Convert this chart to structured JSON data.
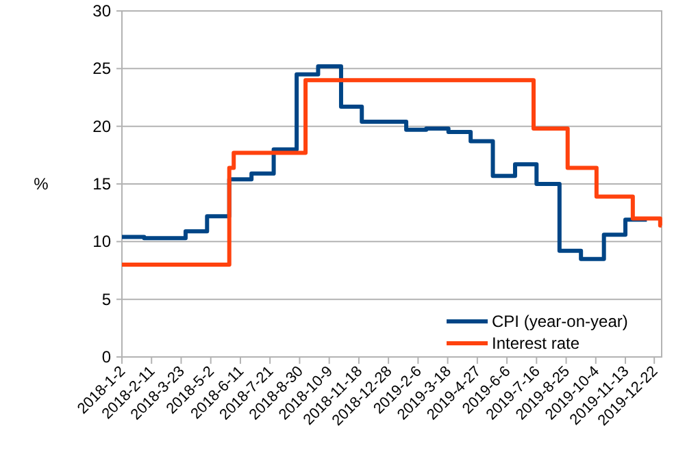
{
  "chart_data": {
    "type": "step",
    "ylabel": "%",
    "xlim": [
      "2018-01-02",
      "2020-01-01"
    ],
    "ylim": [
      0,
      30
    ],
    "yticks": [
      0,
      5,
      10,
      15,
      20,
      25,
      30
    ],
    "xticks": [
      {
        "value": "2018-01-02",
        "label": "2018-1-2"
      },
      {
        "value": "2018-02-11",
        "label": "2018-2-11"
      },
      {
        "value": "2018-03-23",
        "label": "2018-3-23"
      },
      {
        "value": "2018-05-02",
        "label": "2018-5-2"
      },
      {
        "value": "2018-06-11",
        "label": "2018-6-11"
      },
      {
        "value": "2018-07-21",
        "label": "2018-7-21"
      },
      {
        "value": "2018-08-30",
        "label": "2018-8-30"
      },
      {
        "value": "2018-10-09",
        "label": "2018-10-9"
      },
      {
        "value": "2018-11-18",
        "label": "2018-11-18"
      },
      {
        "value": "2018-12-28",
        "label": "2018-12-28"
      },
      {
        "value": "2019-02-06",
        "label": "2019-2-6"
      },
      {
        "value": "2019-03-18",
        "label": "2019-3-18"
      },
      {
        "value": "2019-04-27",
        "label": "2019-4-27"
      },
      {
        "value": "2019-06-06",
        "label": "2019-6-6"
      },
      {
        "value": "2019-07-16",
        "label": "2019-7-16"
      },
      {
        "value": "2019-08-25",
        "label": "2019-8-25"
      },
      {
        "value": "2019-10-04",
        "label": "2019-10-4"
      },
      {
        "value": "2019-11-13",
        "label": "2019-11-13"
      },
      {
        "value": "2019-12-22",
        "label": "2019-12-22"
      }
    ],
    "grid": "y",
    "legend": "bottom right",
    "marker": "none",
    "line_style": "solid",
    "series": [
      {
        "name": "CPI (year-on-year)",
        "color": "#004586",
        "x": [
          "2018-01-02",
          "2018-02-01",
          "2018-03-29",
          "2018-04-27",
          "2018-05-27",
          "2018-06-26",
          "2018-07-26",
          "2018-08-26",
          "2018-09-24",
          "2018-10-25",
          "2018-11-22",
          "2019-01-21",
          "2019-02-17",
          "2019-03-19",
          "2019-04-18",
          "2019-05-18",
          "2019-06-17",
          "2019-07-16",
          "2019-08-16",
          "2019-09-14",
          "2019-10-15",
          "2019-11-13",
          "2019-12-12"
        ],
        "values": [
          10.4,
          10.3,
          10.9,
          12.2,
          15.4,
          15.9,
          18.0,
          24.5,
          25.2,
          21.7,
          20.4,
          19.7,
          19.8,
          19.5,
          18.7,
          15.7,
          16.7,
          15.0,
          9.2,
          8.5,
          10.6,
          11.9,
          11.9
        ]
      },
      {
        "name": "Interest rate",
        "color": "#ff420e",
        "x": [
          "2018-01-02",
          "2018-05-27",
          "2018-06-02",
          "2018-09-07",
          "2019-07-12",
          "2019-08-27",
          "2019-10-05",
          "2019-11-23",
          "2019-12-30",
          "2020-01-01"
        ],
        "values": [
          8.0,
          16.4,
          17.7,
          24.0,
          19.8,
          16.4,
          13.9,
          12.0,
          11.4,
          11.4
        ]
      }
    ]
  }
}
